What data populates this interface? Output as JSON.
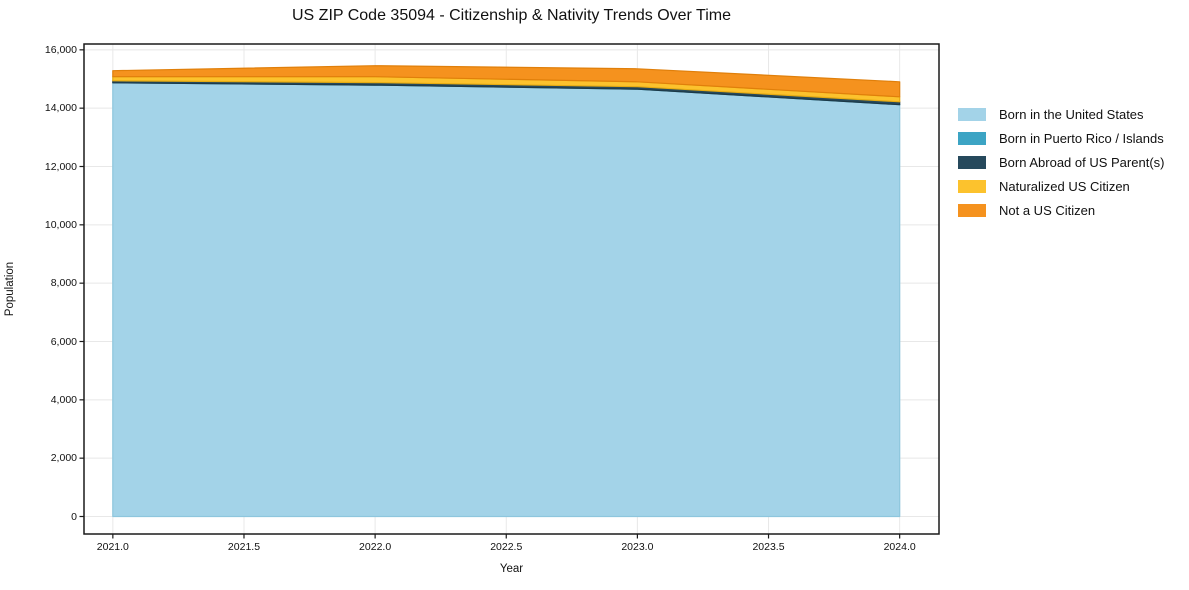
{
  "chart_data": {
    "type": "area",
    "stacked": true,
    "title": "US ZIP Code 35094 - Citizenship & Nativity Trends Over Time",
    "xlabel": "Year",
    "ylabel": "Population",
    "x": [
      2021,
      2022,
      2023,
      2024
    ],
    "series": [
      {
        "name": "Born in the United States",
        "color": "#a3d3e8",
        "edge": "#8ec6dd",
        "values": [
          14870,
          14790,
          14650,
          14120
        ]
      },
      {
        "name": "Born in Puerto Rico / Islands",
        "color": "#3ca4c4",
        "edge": "#2d90ad",
        "values": [
          0,
          0,
          0,
          0
        ]
      },
      {
        "name": "Born Abroad of US Parent(s)",
        "color": "#26495c",
        "edge": "#1d3947",
        "values": [
          70,
          85,
          85,
          100
        ]
      },
      {
        "name": "Naturalized US Citizen",
        "color": "#fcc22d",
        "edge": "#e6ab12",
        "values": [
          140,
          205,
          170,
          170
        ]
      },
      {
        "name": "Not a US Citizen",
        "color": "#f5921e",
        "edge": "#e07f0a",
        "values": [
          205,
          375,
          445,
          515
        ]
      }
    ],
    "xlim": [
      2020.89,
      2024.15
    ],
    "ylim": [
      -600,
      16200
    ],
    "xticks": {
      "values": [
        2021.0,
        2021.5,
        2022.0,
        2022.5,
        2023.0,
        2023.5,
        2024.0
      ],
      "labels": [
        "2021.0",
        "2021.5",
        "2022.0",
        "2022.5",
        "2023.0",
        "2023.5",
        "2024.0"
      ]
    },
    "yticks": {
      "values": [
        0,
        2000,
        4000,
        6000,
        8000,
        10000,
        12000,
        14000,
        16000
      ],
      "labels": [
        "0",
        "2,000",
        "4,000",
        "6,000",
        "8,000",
        "10,000",
        "12,000",
        "14,000",
        "16,000"
      ]
    },
    "grid": true,
    "grid_color": "#e8e8e8",
    "spine_color": "#1a1a1a",
    "legend_position": "right"
  }
}
